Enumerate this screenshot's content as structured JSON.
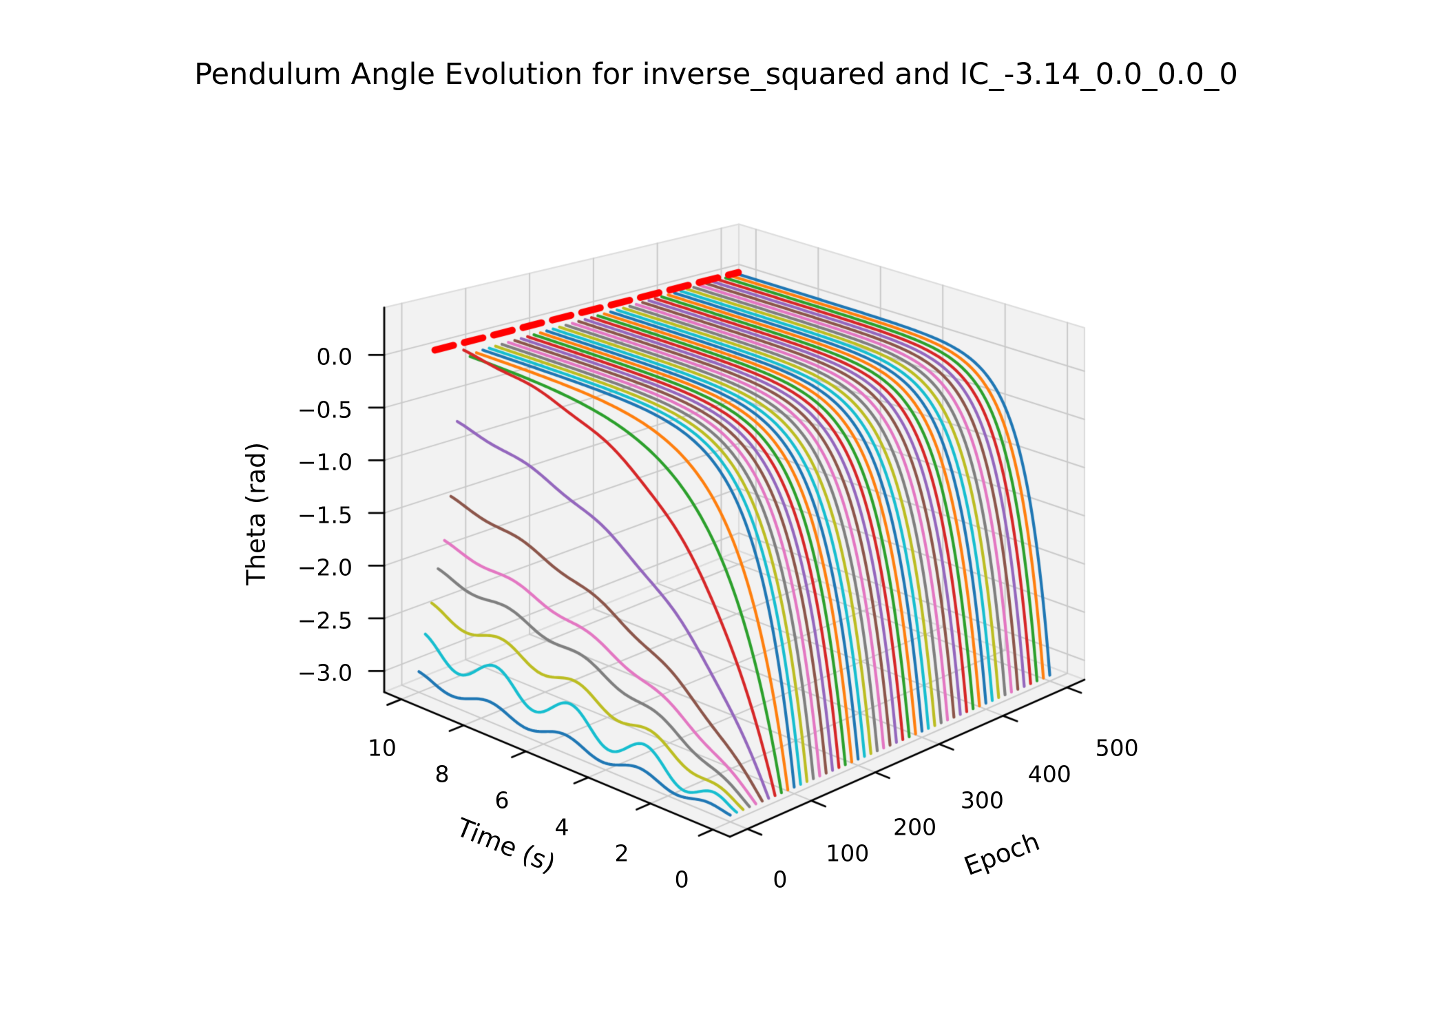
{
  "title": "Pendulum Angle Evolution for inverse_squared and IC_-3.14_0.0_0.0_0",
  "background_color": "#ffffff",
  "chart_data": {
    "type": "line",
    "projection": "3d",
    "description": "Pendulum angle theta(t) predicted at successive training epochs; curves start at theta=-3.14 at t=0 and converge toward theta=0 as epochs increase; red dashed line marks the target theta=0 along the epoch axis at t=10.",
    "grid": true,
    "pane_color": "#f2f2f2",
    "grid_color": "#cacaca",
    "pane_edge_color": "#dcdcdc",
    "axes": {
      "time": {
        "label": "Time (s)",
        "range": [
          0,
          10
        ],
        "ticks": [
          0,
          2,
          4,
          6,
          8,
          10
        ],
        "tick_labels": [
          "0",
          "2",
          "4",
          "6",
          "8",
          "10"
        ]
      },
      "epoch": {
        "label": "Epoch",
        "range": [
          0,
          500
        ],
        "ticks": [
          0,
          100,
          200,
          300,
          400,
          500
        ],
        "tick_labels": [
          "0",
          "100",
          "200",
          "300",
          "400",
          "500"
        ]
      },
      "theta": {
        "label": "Theta (rad)",
        "range": [
          -3.2,
          0.45
        ],
        "ticks": [
          0.0,
          -0.5,
          -1.0,
          -1.5,
          -2.0,
          -2.5,
          -3.0
        ],
        "tick_labels": [
          "0.0",
          "−0.5",
          "−1.0",
          "−1.5",
          "−2.0",
          "−2.5",
          "−3.0"
        ]
      }
    },
    "reference_line": {
      "name": "target-theta-line",
      "theta": 0.02,
      "time": 10,
      "epoch_start": 25,
      "epoch_end": 500,
      "color": "#ff0000",
      "style": "dashed"
    },
    "theta_start": -3.14,
    "color_cycle_from_epoch0": [
      "#1f77b4",
      "#17becf",
      "#bcbd22",
      "#7f7f7f",
      "#e377c2",
      "#8c564b",
      "#9467bd",
      "#d62728",
      "#2ca02c",
      "#ff7f0e"
    ],
    "series": [
      {
        "epoch": 0,
        "color": "#1f77b4",
        "theta_end": -3.05,
        "tau": 9.0,
        "wobble": 0.05
      },
      {
        "epoch": 10,
        "color": "#17becf",
        "theta_end": -2.78,
        "tau": 8.0,
        "wobble": 0.12
      },
      {
        "epoch": 20,
        "color": "#bcbd22",
        "theta_end": -2.45,
        "tau": 7.0,
        "wobble": 0.06
      },
      {
        "epoch": 30,
        "color": "#7f7f7f",
        "theta_end": -2.12,
        "tau": 6.5,
        "wobble": 0.035
      },
      {
        "epoch": 40,
        "color": "#e377c2",
        "theta_end": -1.86,
        "tau": 6.0,
        "wobble": 0.025
      },
      {
        "epoch": 50,
        "color": "#8c564b",
        "theta_end": -1.45,
        "tau": 5.5,
        "wobble": 0.02
      },
      {
        "epoch": 60,
        "color": "#9467bd",
        "theta_end": -0.74,
        "tau": 4.2,
        "wobble": 0.015
      },
      {
        "epoch": 70,
        "color": "#d62728",
        "theta_end": -0.06,
        "tau": 3.0,
        "wobble": 0.01
      },
      {
        "epoch": 80,
        "color": "#2ca02c",
        "theta_end": -0.13,
        "tau": 1.9,
        "wobble": 0
      },
      {
        "epoch": 90,
        "color": "#ff7f0e",
        "theta_end": -0.11,
        "tau": 1.5,
        "wobble": 0
      },
      {
        "epoch": 100,
        "color": "#1f77b4",
        "theta_end": -0.1,
        "tau": 1.15,
        "wobble": 0
      },
      {
        "epoch": 110,
        "color": "#17becf",
        "theta_end": -0.0975,
        "tau": 1.141,
        "wobble": 0
      },
      {
        "epoch": 120,
        "color": "#bcbd22",
        "theta_end": -0.095,
        "tau": 1.133,
        "wobble": 0
      },
      {
        "epoch": 130,
        "color": "#7f7f7f",
        "theta_end": -0.0925,
        "tau": 1.124,
        "wobble": 0
      },
      {
        "epoch": 140,
        "color": "#e377c2",
        "theta_end": -0.09,
        "tau": 1.115,
        "wobble": 0
      },
      {
        "epoch": 150,
        "color": "#8c564b",
        "theta_end": -0.0875,
        "tau": 1.106,
        "wobble": 0
      },
      {
        "epoch": 160,
        "color": "#9467bd",
        "theta_end": -0.085,
        "tau": 1.098,
        "wobble": 0
      },
      {
        "epoch": 170,
        "color": "#d62728",
        "theta_end": -0.0825,
        "tau": 1.089,
        "wobble": 0
      },
      {
        "epoch": 180,
        "color": "#2ca02c",
        "theta_end": -0.08,
        "tau": 1.08,
        "wobble": 0
      },
      {
        "epoch": 190,
        "color": "#ff7f0e",
        "theta_end": -0.0775,
        "tau": 1.071,
        "wobble": 0
      },
      {
        "epoch": 200,
        "color": "#1f77b4",
        "theta_end": -0.075,
        "tau": 1.063,
        "wobble": 0
      },
      {
        "epoch": 210,
        "color": "#17becf",
        "theta_end": -0.0725,
        "tau": 1.054,
        "wobble": 0
      },
      {
        "epoch": 220,
        "color": "#bcbd22",
        "theta_end": -0.07,
        "tau": 1.045,
        "wobble": 0
      },
      {
        "epoch": 230,
        "color": "#7f7f7f",
        "theta_end": -0.0675,
        "tau": 1.036,
        "wobble": 0
      },
      {
        "epoch": 240,
        "color": "#e377c2",
        "theta_end": -0.065,
        "tau": 1.028,
        "wobble": 0
      },
      {
        "epoch": 250,
        "color": "#8c564b",
        "theta_end": -0.0625,
        "tau": 1.019,
        "wobble": 0
      },
      {
        "epoch": 260,
        "color": "#9467bd",
        "theta_end": -0.06,
        "tau": 1.01,
        "wobble": 0
      },
      {
        "epoch": 270,
        "color": "#d62728",
        "theta_end": -0.0575,
        "tau": 1.001,
        "wobble": 0
      },
      {
        "epoch": 280,
        "color": "#2ca02c",
        "theta_end": -0.055,
        "tau": 0.993,
        "wobble": 0
      },
      {
        "epoch": 290,
        "color": "#ff7f0e",
        "theta_end": -0.0525,
        "tau": 0.984,
        "wobble": 0
      },
      {
        "epoch": 300,
        "color": "#1f77b4",
        "theta_end": -0.05,
        "tau": 0.975,
        "wobble": 0
      },
      {
        "epoch": 310,
        "color": "#17becf",
        "theta_end": -0.0475,
        "tau": 0.966,
        "wobble": 0
      },
      {
        "epoch": 320,
        "color": "#bcbd22",
        "theta_end": -0.045,
        "tau": 0.958,
        "wobble": 0
      },
      {
        "epoch": 330,
        "color": "#7f7f7f",
        "theta_end": -0.0425,
        "tau": 0.949,
        "wobble": 0
      },
      {
        "epoch": 340,
        "color": "#e377c2",
        "theta_end": -0.04,
        "tau": 0.94,
        "wobble": 0
      },
      {
        "epoch": 350,
        "color": "#8c564b",
        "theta_end": -0.0375,
        "tau": 0.931,
        "wobble": 0
      },
      {
        "epoch": 360,
        "color": "#9467bd",
        "theta_end": -0.035,
        "tau": 0.923,
        "wobble": 0
      },
      {
        "epoch": 370,
        "color": "#d62728",
        "theta_end": -0.0325,
        "tau": 0.914,
        "wobble": 0
      },
      {
        "epoch": 380,
        "color": "#2ca02c",
        "theta_end": -0.03,
        "tau": 0.905,
        "wobble": 0
      },
      {
        "epoch": 390,
        "color": "#ff7f0e",
        "theta_end": -0.0275,
        "tau": 0.896,
        "wobble": 0
      },
      {
        "epoch": 400,
        "color": "#1f77b4",
        "theta_end": -0.025,
        "tau": 0.888,
        "wobble": 0
      },
      {
        "epoch": 410,
        "color": "#17becf",
        "theta_end": -0.0225,
        "tau": 0.879,
        "wobble": 0
      },
      {
        "epoch": 420,
        "color": "#bcbd22",
        "theta_end": -0.02,
        "tau": 0.87,
        "wobble": 0
      },
      {
        "epoch": 430,
        "color": "#7f7f7f",
        "theta_end": -0.0175,
        "tau": 0.861,
        "wobble": 0
      },
      {
        "epoch": 440,
        "color": "#e377c2",
        "theta_end": -0.015,
        "tau": 0.853,
        "wobble": 0
      },
      {
        "epoch": 450,
        "color": "#8c564b",
        "theta_end": -0.0125,
        "tau": 0.844,
        "wobble": 0
      },
      {
        "epoch": 460,
        "color": "#9467bd",
        "theta_end": -0.01,
        "tau": 0.835,
        "wobble": 0
      },
      {
        "epoch": 470,
        "color": "#d62728",
        "theta_end": -0.0075,
        "tau": 0.826,
        "wobble": 0
      },
      {
        "epoch": 480,
        "color": "#2ca02c",
        "theta_end": -0.005,
        "tau": 0.818,
        "wobble": 0
      },
      {
        "epoch": 490,
        "color": "#ff7f0e",
        "theta_end": -0.0025,
        "tau": 0.809,
        "wobble": 0
      },
      {
        "epoch": 500,
        "color": "#1f77b4",
        "theta_end": 0.0,
        "tau": 0.8,
        "wobble": 0
      }
    ]
  }
}
